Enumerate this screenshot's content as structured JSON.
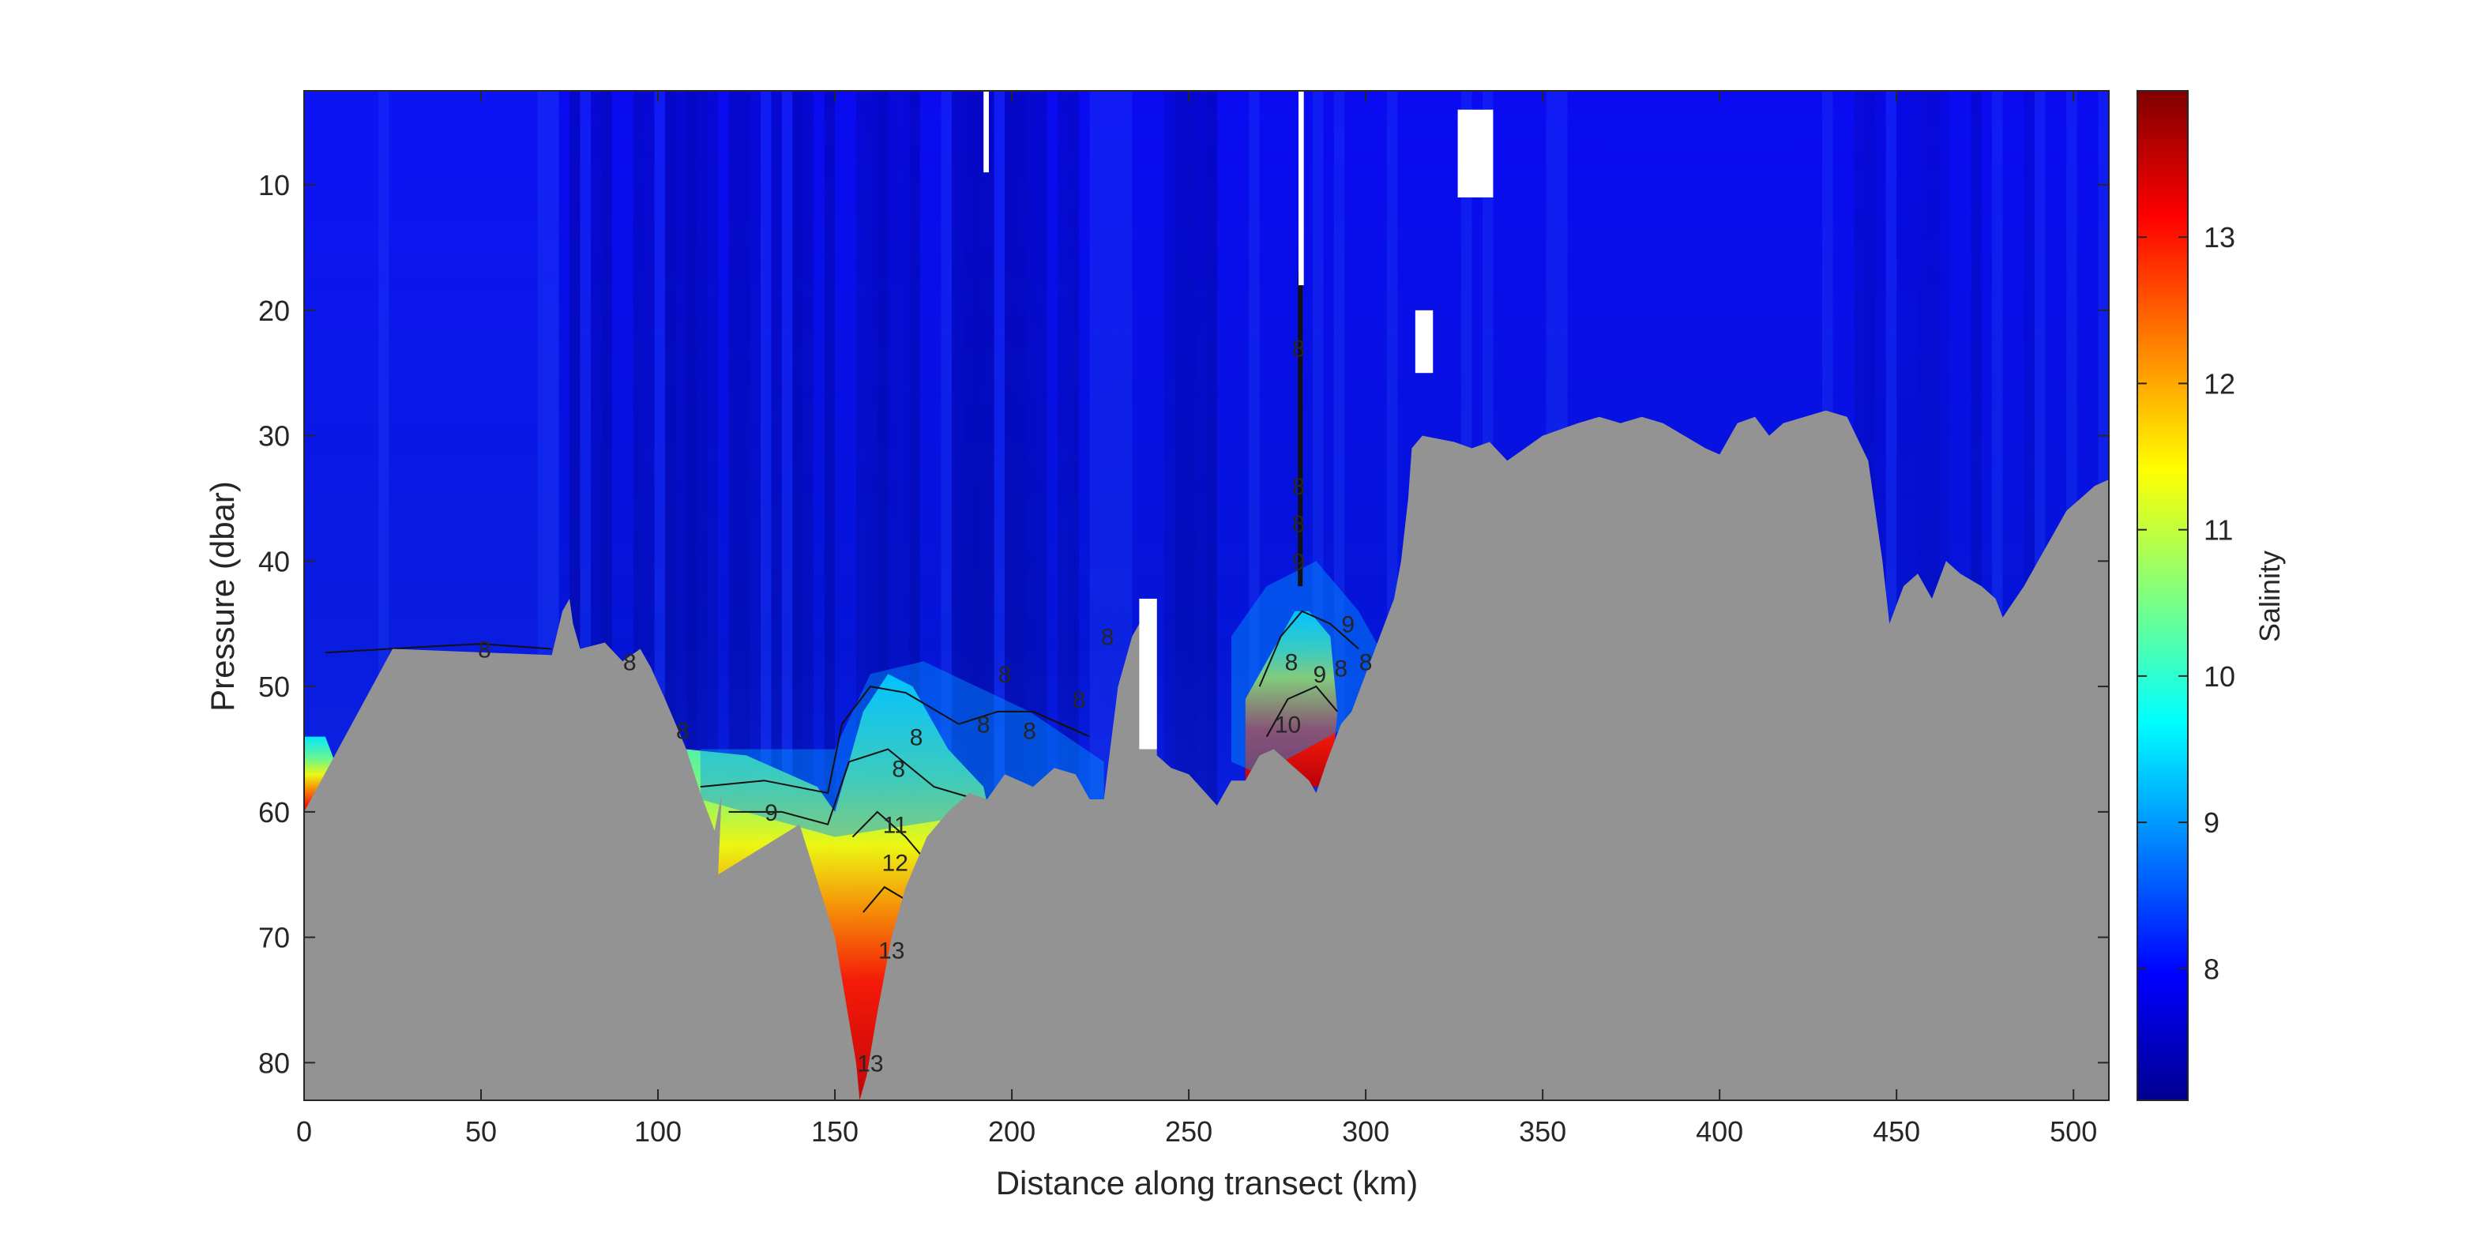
{
  "chart_data": {
    "type": "heatmap",
    "title": "",
    "xlabel": "Distance along transect (km)",
    "ylabel": "Pressure (dbar)",
    "xlim": [
      0,
      510
    ],
    "ylim": [
      83,
      2.5
    ],
    "y_reversed": true,
    "x_ticks": [
      "0",
      "50",
      "100",
      "150",
      "200",
      "250",
      "300",
      "350",
      "400",
      "450",
      "500"
    ],
    "y_ticks": [
      "10",
      "20",
      "30",
      "40",
      "50",
      "60",
      "70",
      "80"
    ],
    "colorbar": {
      "label": "Salinity",
      "colormap": "jet",
      "limits": [
        7.1,
        14.0
      ],
      "ticks": [
        "8",
        "9",
        "10",
        "11",
        "12",
        "13"
      ]
    },
    "surface_water_salinity": 7.6,
    "deep_basin_max_salinity": 14,
    "contour_labels": [
      {
        "text": "8",
        "x": 51,
        "y": 47
      },
      {
        "text": "8",
        "x": 92,
        "y": 48
      },
      {
        "text": "8",
        "x": 107,
        "y": 53.5
      },
      {
        "text": "9",
        "x": 132,
        "y": 60
      },
      {
        "text": "8",
        "x": 168,
        "y": 56.5
      },
      {
        "text": "8",
        "x": 173,
        "y": 54
      },
      {
        "text": "8",
        "x": 192,
        "y": 53
      },
      {
        "text": "8",
        "x": 198,
        "y": 49
      },
      {
        "text": "8",
        "x": 205,
        "y": 53.5
      },
      {
        "text": "8",
        "x": 219,
        "y": 51
      },
      {
        "text": "8",
        "x": 227,
        "y": 46
      },
      {
        "text": "11",
        "x": 167,
        "y": 61
      },
      {
        "text": "12",
        "x": 167,
        "y": 64
      },
      {
        "text": "13",
        "x": 166,
        "y": 71
      },
      {
        "text": "13",
        "x": 160,
        "y": 80
      },
      {
        "text": "8",
        "x": 281,
        "y": 23
      },
      {
        "text": "8",
        "x": 281,
        "y": 34
      },
      {
        "text": "8",
        "x": 281,
        "y": 37
      },
      {
        "text": "9",
        "x": 281,
        "y": 40
      },
      {
        "text": "8",
        "x": 279,
        "y": 48
      },
      {
        "text": "9",
        "x": 287,
        "y": 49
      },
      {
        "text": "8",
        "x": 293,
        "y": 48.5
      },
      {
        "text": "9",
        "x": 295,
        "y": 45
      },
      {
        "text": "8",
        "x": 300,
        "y": 48
      },
      {
        "text": "10",
        "x": 278,
        "y": 53
      }
    ],
    "bathymetry": [
      [
        0,
        60
      ],
      [
        25,
        47
      ],
      [
        70,
        47.5
      ],
      [
        73,
        44
      ],
      [
        75,
        43
      ],
      [
        76,
        45
      ],
      [
        78,
        47
      ],
      [
        85,
        46.5
      ],
      [
        90,
        48
      ],
      [
        95,
        47
      ],
      [
        98,
        48.5
      ],
      [
        102,
        51
      ],
      [
        108,
        55
      ],
      [
        112,
        58.5
      ],
      [
        114,
        60
      ],
      [
        116,
        61.5
      ],
      [
        118,
        58.5
      ],
      [
        117,
        65
      ],
      [
        140,
        61
      ],
      [
        150,
        70
      ],
      [
        156,
        80
      ],
      [
        157,
        83
      ],
      [
        159,
        81
      ],
      [
        162,
        76
      ],
      [
        166,
        70
      ],
      [
        170,
        66
      ],
      [
        176,
        62
      ],
      [
        182,
        60
      ],
      [
        188,
        58.5
      ],
      [
        193,
        59
      ],
      [
        198,
        57
      ],
      [
        206,
        58
      ],
      [
        212,
        56.5
      ],
      [
        218,
        57
      ],
      [
        222,
        59
      ],
      [
        226,
        59
      ],
      [
        230,
        50
      ],
      [
        234,
        46
      ],
      [
        236,
        45
      ],
      [
        238,
        43
      ],
      [
        240,
        44
      ],
      [
        241,
        55.5
      ],
      [
        245,
        56.5
      ],
      [
        250,
        57
      ],
      [
        258,
        59.5
      ],
      [
        262,
        57.5
      ],
      [
        266,
        57.5
      ],
      [
        270,
        55.5
      ],
      [
        274,
        55
      ],
      [
        278,
        56
      ],
      [
        284,
        57.5
      ],
      [
        286,
        58.5
      ],
      [
        289,
        56
      ],
      [
        293,
        53
      ],
      [
        296,
        52
      ],
      [
        300,
        49
      ],
      [
        304,
        46
      ],
      [
        308,
        43
      ],
      [
        310,
        40
      ],
      [
        312,
        35
      ],
      [
        313,
        31
      ],
      [
        316,
        30
      ],
      [
        325,
        30.5
      ],
      [
        330,
        31
      ],
      [
        335,
        30.5
      ],
      [
        340,
        32
      ],
      [
        345,
        31
      ],
      [
        350,
        30
      ],
      [
        360,
        29
      ],
      [
        366,
        28.5
      ],
      [
        372,
        29
      ],
      [
        378,
        28.5
      ],
      [
        384,
        29
      ],
      [
        390,
        30
      ],
      [
        396,
        31
      ],
      [
        400,
        31.5
      ],
      [
        405,
        29
      ],
      [
        410,
        28.5
      ],
      [
        414,
        30
      ],
      [
        418,
        29
      ],
      [
        424,
        28.5
      ],
      [
        430,
        28
      ],
      [
        436,
        28.5
      ],
      [
        442,
        32
      ],
      [
        446,
        40
      ],
      [
        448,
        45
      ],
      [
        452,
        42
      ],
      [
        456,
        41
      ],
      [
        460,
        43
      ],
      [
        464,
        40
      ],
      [
        468,
        41
      ],
      [
        474,
        42
      ],
      [
        478,
        43
      ],
      [
        480,
        44.5
      ],
      [
        486,
        42
      ],
      [
        490,
        40
      ],
      [
        494,
        38
      ],
      [
        498,
        36
      ],
      [
        502,
        35
      ],
      [
        506,
        34
      ],
      [
        510,
        33.5
      ]
    ],
    "data_gaps": [
      {
        "x": [
          192,
          193.5
        ],
        "y": [
          2.5,
          9
        ]
      },
      {
        "x": [
          281,
          282.5
        ],
        "y": [
          2.5,
          18
        ]
      },
      {
        "x": [
          314,
          319
        ],
        "y": [
          20,
          25
        ]
      },
      {
        "x": [
          326,
          336
        ],
        "y": [
          4,
          11
        ]
      },
      {
        "x": [
          236,
          241
        ],
        "y": [
          43,
          55
        ]
      }
    ]
  }
}
